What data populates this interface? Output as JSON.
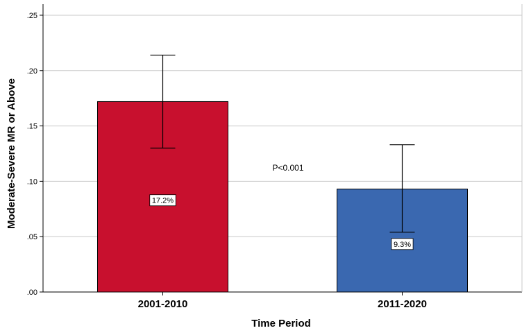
{
  "chart_data": {
    "type": "bar",
    "title": "",
    "xlabel": "Time Period",
    "ylabel": "Moderate-Severe MR or Above",
    "categories": [
      "2001-2010",
      "2011-2020"
    ],
    "values": [
      0.172,
      0.093
    ],
    "error_low": [
      0.13,
      0.054
    ],
    "error_high": [
      0.214,
      0.133
    ],
    "data_labels": [
      "17.2%",
      "9.3%"
    ],
    "colors": [
      "#c8102e",
      "#3a68b0"
    ],
    "ylim": [
      0,
      0.26
    ],
    "yticks": [
      0,
      0.05,
      0.1,
      0.15,
      0.2,
      0.25
    ],
    "ytick_labels": [
      ".00",
      ".05",
      ".10",
      ".15",
      ".20",
      ".25"
    ],
    "grid": true,
    "annotation": "P<0.001"
  }
}
